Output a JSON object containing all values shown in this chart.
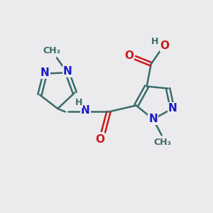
{
  "background_color": "#ebebed",
  "bond_color": "#3a6b6b",
  "nitrogen_color": "#1a1acc",
  "oxygen_color": "#cc1a1a",
  "line_width": 1.8,
  "font_size_atom": 11,
  "font_size_small": 9,
  "xlim": [
    0,
    10
  ],
  "ylim": [
    0,
    10
  ]
}
